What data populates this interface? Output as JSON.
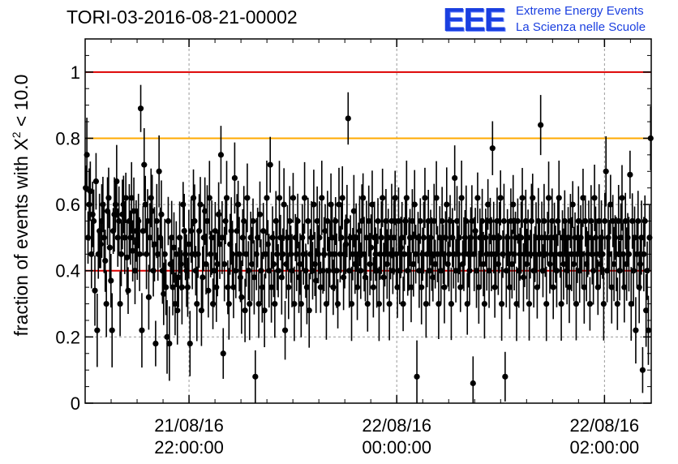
{
  "chart_data": {
    "type": "scatter",
    "title": "TORI-03-2016-08-21-00002",
    "ylabel": "fraction of events with",
    "ylabel_symbol": "X",
    "ylabel_superscript": "2",
    "ylabel_threshold": "< 10.0",
    "xlabel": "",
    "ylim": [
      0,
      1.1
    ],
    "xlim_hours": [
      -1.0,
      4.45
    ],
    "x_ticks": [
      {
        "x": 0,
        "date": "21/08/16",
        "time": "22:00:00"
      },
      {
        "x": 2,
        "date": "22/08/16",
        "time": "00:00:00"
      },
      {
        "x": 4,
        "date": "22/08/16",
        "time": "02:00:00"
      }
    ],
    "y_ticks": [
      {
        "value": 0,
        "label": "0"
      },
      {
        "value": 0.2,
        "label": "0.2"
      },
      {
        "value": 0.4,
        "label": "0.4"
      },
      {
        "value": 0.6,
        "label": "0.6"
      },
      {
        "value": 0.8,
        "label": "0.8"
      },
      {
        "value": 1.0,
        "label": "1"
      }
    ],
    "grid": "dashed",
    "reference_lines": [
      {
        "y": 1.0,
        "color": "#dd0000"
      },
      {
        "y": 0.8,
        "color": "#ffaa00"
      },
      {
        "y": 0.4,
        "color": "#dd0000"
      }
    ],
    "series": [
      {
        "style": "points-with-error-bars",
        "color": "#000000",
        "sampling_interval_hours": 0.01,
        "typical_error": 0.09,
        "y": [
          0.65,
          0.75,
          0.5,
          0.6,
          0.64,
          0.45,
          0.57,
          0.55,
          0.34,
          0.67,
          0.22,
          0.45,
          0.52,
          0.48,
          0.55,
          0.6,
          0.5,
          0.43,
          0.3,
          0.58,
          0.62,
          0.47,
          0.37,
          0.22,
          0.52,
          0.57,
          0.6,
          0.67,
          0.5,
          0.55,
          0.3,
          0.45,
          0.57,
          0.6,
          0.5,
          0.62,
          0.44,
          0.34,
          0.55,
          0.5,
          0.62,
          0.46,
          0.58,
          0.4,
          0.52,
          0.48,
          0.55,
          0.45,
          0.89,
          0.22,
          0.52,
          0.72,
          0.6,
          0.45,
          0.55,
          0.32,
          0.5,
          0.62,
          0.58,
          0.4,
          0.48,
          0.18,
          0.55,
          0.45,
          0.7,
          0.5,
          0.57,
          0.4,
          0.33,
          0.45,
          0.35,
          0.2,
          0.55,
          0.18,
          0.42,
          0.5,
          0.35,
          0.47,
          0.3,
          0.45,
          0.28,
          0.38,
          0.5,
          0.42,
          0.35,
          0.6,
          0.52,
          0.45,
          0.4,
          0.35,
          0.48,
          0.18,
          0.52,
          0.45,
          0.62,
          0.55,
          0.4,
          0.3,
          0.45,
          0.52,
          0.6,
          0.28,
          0.38,
          0.5,
          0.58,
          0.42,
          0.55,
          0.34,
          0.62,
          0.45,
          0.5,
          0.3,
          0.4,
          0.52,
          0.35,
          0.42,
          0.57,
          0.48,
          0.75,
          0.5,
          0.15,
          0.42,
          0.55,
          0.62,
          0.35,
          0.3,
          0.48,
          0.52,
          0.45,
          0.35,
          0.68,
          0.4,
          0.52,
          0.6,
          0.45,
          0.38,
          0.32,
          0.5,
          0.55,
          0.28,
          0.45,
          0.62,
          0.4,
          0.3,
          0.5,
          0.42,
          0.55,
          0.38,
          0.08,
          0.45,
          0.5,
          0.3,
          0.57,
          0.4,
          0.35,
          0.52,
          0.28,
          0.45,
          0.62,
          0.48,
          0.4,
          0.72,
          0.35,
          0.5,
          0.42,
          0.3,
          0.55,
          0.45,
          0.4,
          0.62,
          0.5,
          0.38,
          0.45,
          0.6,
          0.22,
          0.42,
          0.5,
          0.35,
          0.55,
          0.45,
          0.4,
          0.62,
          0.3,
          0.5,
          0.45,
          0.55,
          0.38,
          0.42,
          0.3,
          0.5,
          0.45,
          0.62,
          0.4,
          0.35,
          0.55,
          0.28,
          0.45,
          0.5,
          0.4,
          0.6,
          0.42,
          0.37,
          0.55,
          0.45,
          0.5,
          0.35,
          0.62,
          0.4,
          0.45,
          0.52,
          0.3,
          0.55,
          0.4,
          0.45,
          0.6,
          0.5,
          0.35,
          0.45,
          0.55,
          0.4,
          0.3,
          0.6,
          0.45,
          0.5,
          0.62,
          0.38,
          0.45,
          0.48,
          0.55,
          0.86,
          0.4,
          0.5,
          0.3,
          0.45,
          0.58,
          0.42,
          0.5,
          0.35,
          0.45,
          0.52,
          0.4,
          0.55,
          0.62,
          0.45,
          0.38,
          0.5,
          0.3,
          0.55,
          0.42,
          0.47,
          0.6,
          0.35,
          0.5,
          0.45,
          0.4,
          0.55,
          0.3,
          0.45,
          0.5,
          0.62,
          0.38,
          0.45,
          0.55,
          0.42,
          0.5,
          0.3,
          0.45,
          0.55,
          0.4,
          0.5,
          0.62,
          0.45,
          0.35,
          0.55,
          0.4,
          0.47,
          0.5,
          0.3,
          0.45,
          0.55,
          0.62,
          0.4,
          0.45,
          0.5,
          0.35,
          0.55,
          0.42,
          0.6,
          0.45,
          0.08,
          0.5,
          0.4,
          0.55,
          0.35,
          0.45,
          0.5,
          0.62,
          0.3,
          0.45,
          0.55,
          0.4,
          0.5,
          0.45,
          0.38,
          0.55,
          0.42,
          0.62,
          0.45,
          0.3,
          0.5,
          0.4,
          0.55,
          0.45,
          0.35,
          0.5,
          0.6,
          0.42,
          0.45,
          0.55,
          0.3,
          0.5,
          0.45,
          0.68,
          0.4,
          0.55,
          0.45,
          0.5,
          0.35,
          0.62,
          0.42,
          0.45,
          0.5,
          0.55,
          0.3,
          0.45,
          0.4,
          0.5,
          0.55,
          0.06,
          0.45,
          0.52,
          0.4,
          0.62,
          0.35,
          0.5,
          0.45,
          0.55,
          0.42,
          0.3,
          0.5,
          0.45,
          0.6,
          0.4,
          0.55,
          0.45,
          0.77,
          0.5,
          0.35,
          0.45,
          0.55,
          0.42,
          0.5,
          0.62,
          0.3,
          0.45,
          0.55,
          0.08,
          0.4,
          0.5,
          0.45,
          0.35,
          0.55,
          0.42,
          0.6,
          0.45,
          0.5,
          0.3,
          0.55,
          0.4,
          0.45,
          0.5,
          0.62,
          0.38,
          0.45,
          0.55,
          0.42,
          0.5,
          0.3,
          0.45,
          0.55,
          0.62,
          0.4,
          0.45,
          0.5,
          0.35,
          0.55,
          0.45,
          0.84,
          0.5,
          0.4,
          0.55,
          0.45,
          0.3,
          0.5,
          0.62,
          0.42,
          0.45,
          0.55,
          0.35,
          0.5,
          0.45,
          0.4,
          0.55,
          0.62,
          0.45,
          0.3,
          0.5,
          0.42,
          0.55,
          0.45,
          0.4,
          0.5,
          0.35,
          0.55,
          0.45,
          0.6,
          0.42,
          0.5,
          0.3,
          0.45,
          0.55,
          0.4,
          0.5,
          0.45,
          0.62,
          0.35,
          0.55,
          0.42,
          0.45,
          0.5,
          0.3,
          0.55,
          0.45,
          0.4,
          0.62,
          0.5,
          0.45,
          0.35,
          0.55,
          0.42,
          0.5,
          0.45,
          0.3,
          0.55,
          0.7,
          0.4,
          0.5,
          0.45,
          0.6,
          0.35,
          0.55,
          0.42,
          0.5,
          0.45,
          0.3,
          0.55,
          0.4,
          0.5,
          0.62,
          0.45,
          0.35,
          0.55,
          0.42,
          0.5,
          0.45,
          0.69,
          0.3,
          0.55,
          0.4,
          0.5,
          0.22,
          0.45,
          0.55,
          0.35,
          0.42,
          0.5,
          0.1,
          0.45,
          0.55,
          0.28,
          0.4,
          0.22,
          0.5,
          0.8
        ]
      }
    ]
  },
  "logo": {
    "mark": "EEE",
    "line1": "Extreme Energy Events",
    "line2": "La Scienza nelle Scuole"
  },
  "colors": {
    "points": "#000000",
    "line_limit_high": "#dd0000",
    "line_warning": "#ffaa00",
    "line_limit_low": "#dd0000",
    "grid": "#9a9a9a",
    "logo_blue": "#1a3fe0"
  }
}
